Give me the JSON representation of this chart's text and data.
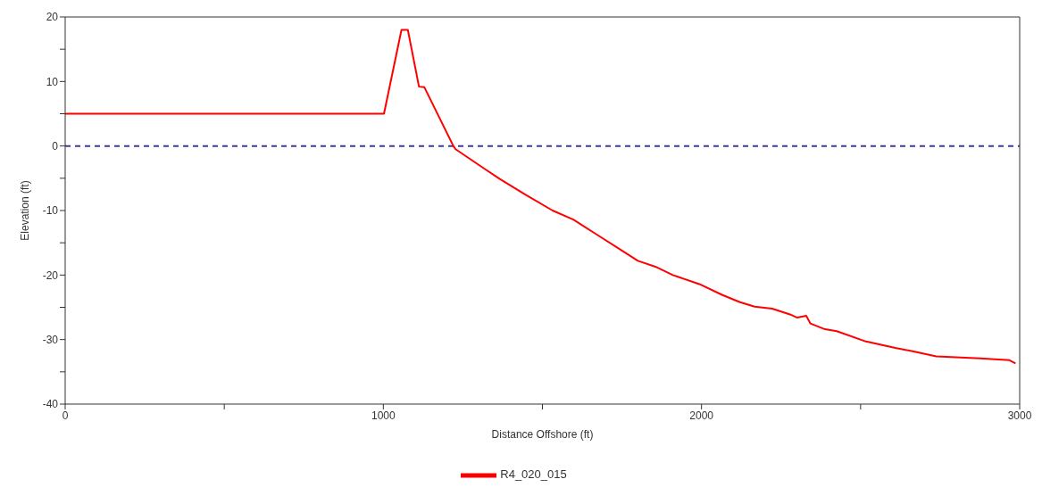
{
  "chart_data": {
    "type": "line",
    "xlabel": "Distance Offshore (ft)",
    "ylabel": "Elevation (ft)",
    "x": [
      0,
      1002,
      1057,
      1077,
      1112,
      1129,
      1220,
      1227,
      1317,
      1366,
      1445,
      1532,
      1597,
      1670,
      1753,
      1800,
      1855,
      1910,
      1993,
      2066,
      2121,
      2167,
      2222,
      2278,
      2301,
      2329,
      2342,
      2388,
      2425,
      2517,
      2609,
      2673,
      2738,
      2876,
      2968,
      2987
    ],
    "series": [
      {
        "name": "R4_020_015",
        "color": "#ff0000",
        "values": [
          5,
          5,
          18,
          18,
          9.2,
          9.1,
          0,
          -0.5,
          -3.5,
          -5.1,
          -7.5,
          -10,
          -11.4,
          -13.7,
          -16.3,
          -17.8,
          -18.7,
          -20,
          -21.4,
          -23.1,
          -24.2,
          -24.9,
          -25.2,
          -26.1,
          -26.6,
          -26.3,
          -27.5,
          -28.4,
          -28.7,
          -30.3,
          -31.3,
          -31.9,
          -32.6,
          -32.9,
          -33.2,
          -33.7
        ]
      }
    ],
    "xlim": [
      0,
      3000
    ],
    "xticks": [
      0,
      {
        "value": 500,
        "label": null
      },
      1000,
      {
        "value": 1500,
        "label": null
      },
      2000,
      {
        "value": 2500,
        "label": null
      },
      3000
    ],
    "ylim": [
      -40,
      20
    ],
    "yticks": [
      -40,
      {
        "value": -35,
        "label": null
      },
      -30,
      {
        "value": -25,
        "label": null
      },
      -20,
      {
        "value": -15,
        "label": null
      },
      -10,
      {
        "value": -5,
        "label": null
      },
      0,
      {
        "value": 5,
        "label": null
      },
      10,
      {
        "value": 15,
        "label": null
      },
      20
    ],
    "ref_lines": [
      {
        "axis": "y",
        "value": 0,
        "color": "#3c3ca0",
        "line_style": "dashed"
      }
    ],
    "legend": "bottom",
    "grid": false
  }
}
